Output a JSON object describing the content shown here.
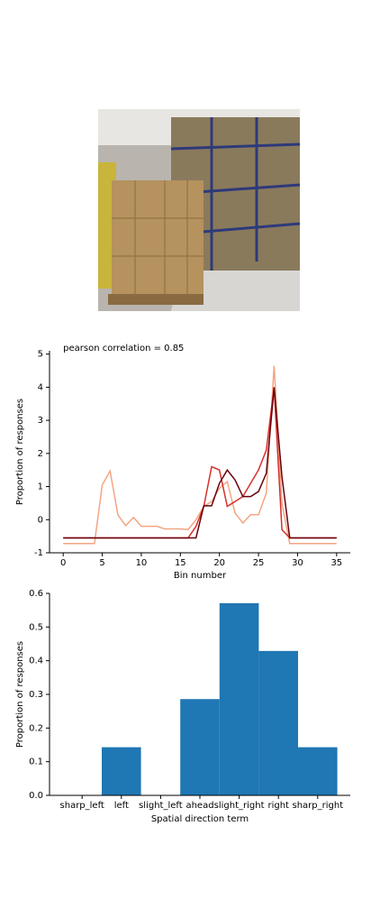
{
  "chart_data": [
    {
      "type": "line",
      "annotation": "pearson correlation = 0.85",
      "xlabel": "Bin number",
      "ylabel": "Proportion of responses",
      "x": [
        0,
        1,
        2,
        3,
        4,
        5,
        6,
        7,
        8,
        9,
        10,
        11,
        12,
        13,
        14,
        15,
        16,
        17,
        18,
        19,
        20,
        21,
        22,
        23,
        24,
        25,
        26,
        27,
        28,
        29,
        30,
        31,
        32,
        33,
        34,
        35
      ],
      "series": [
        {
          "color": "#f4a582",
          "values": [
            -0.72,
            -0.72,
            -0.72,
            -0.72,
            -0.72,
            1.05,
            1.47,
            0.15,
            -0.18,
            0.07,
            -0.2,
            -0.2,
            -0.2,
            -0.28,
            -0.28,
            -0.28,
            -0.3,
            0.0,
            0.4,
            0.55,
            0.95,
            1.15,
            0.2,
            -0.1,
            0.15,
            0.15,
            0.8,
            4.65,
            0.5,
            -0.72,
            -0.72,
            -0.72,
            -0.72,
            -0.72,
            -0.72,
            -0.72
          ]
        },
        {
          "color": "#d6302a",
          "values": [
            -0.55,
            -0.55,
            -0.55,
            -0.55,
            -0.55,
            -0.55,
            -0.55,
            -0.55,
            -0.55,
            -0.55,
            -0.55,
            -0.55,
            -0.55,
            -0.55,
            -0.55,
            -0.55,
            -0.55,
            -0.2,
            0.4,
            1.6,
            1.5,
            0.4,
            0.55,
            0.7,
            1.1,
            1.5,
            2.1,
            4.0,
            -0.3,
            -0.55,
            -0.55,
            -0.55,
            -0.55,
            -0.55,
            -0.55,
            -0.55
          ]
        },
        {
          "color": "#67000d",
          "values": [
            -0.55,
            -0.55,
            -0.55,
            -0.55,
            -0.55,
            -0.55,
            -0.55,
            -0.55,
            -0.55,
            -0.55,
            -0.55,
            -0.55,
            -0.55,
            -0.55,
            -0.55,
            -0.55,
            -0.55,
            -0.55,
            0.42,
            0.42,
            1.1,
            1.5,
            1.2,
            0.7,
            0.7,
            0.85,
            1.4,
            4.0,
            1.3,
            -0.55,
            -0.55,
            -0.55,
            -0.55,
            -0.55,
            -0.55,
            -0.55
          ]
        }
      ],
      "xlim": [
        -1.75,
        36.75
      ],
      "xticks": [
        0,
        5,
        10,
        15,
        20,
        25,
        30,
        35
      ],
      "ylim": [
        -1.0,
        5.1
      ],
      "yticks": [
        -1,
        0,
        1,
        2,
        3,
        4,
        5
      ]
    },
    {
      "type": "bar",
      "xlabel": "Spatial direction term",
      "ylabel": "Proportion of responses",
      "categories": [
        "sharp_left",
        "left",
        "slight_left",
        "ahead",
        "slight_right",
        "right",
        "sharp_right"
      ],
      "values": [
        0,
        0.143,
        0,
        0.286,
        0.571,
        0.429,
        0.143
      ],
      "color": "#1f77b4",
      "ylim": [
        0,
        0.6
      ],
      "yticks": [
        {
          "value": 0,
          "label": "0.0"
        },
        0.1,
        0.2,
        0.3,
        0.4,
        0.5,
        0.6
      ]
    }
  ]
}
